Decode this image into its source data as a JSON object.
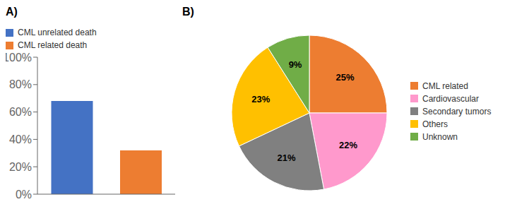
{
  "chart_data": [
    {
      "type": "bar",
      "title": "A)",
      "categories": [
        "CML unrelated death",
        "CML related death"
      ],
      "values": [
        0.68,
        0.32
      ],
      "colors": [
        "#4472C4",
        "#ED7D31"
      ],
      "ylim": [
        0,
        1.0
      ],
      "yticks": [
        {
          "value": 0.0,
          "label": "0%"
        },
        {
          "value": 0.2,
          "label": "20%"
        },
        {
          "value": 0.4,
          "label": "40%"
        },
        {
          "value": 0.6,
          "label": "60%"
        },
        {
          "value": 0.8,
          "label": "80%"
        },
        {
          "value": 1.0,
          "label": "100%"
        }
      ],
      "tick_labels": "y",
      "legend": "upper right"
    },
    {
      "type": "pie",
      "title": "B)",
      "categories": [
        "CML related",
        "Cardiovascular",
        "Secondary tumors",
        "Others",
        "Unknown"
      ],
      "values": [
        25,
        22,
        21,
        23,
        9
      ],
      "value_labels": [
        "25%",
        "22%",
        "21%",
        "23%",
        "9%"
      ],
      "colors": [
        "#ED7D31",
        "#FF99CC",
        "#808080",
        "#FFC000",
        "#70AD47"
      ],
      "data_labels": true,
      "legend": "right"
    }
  ]
}
